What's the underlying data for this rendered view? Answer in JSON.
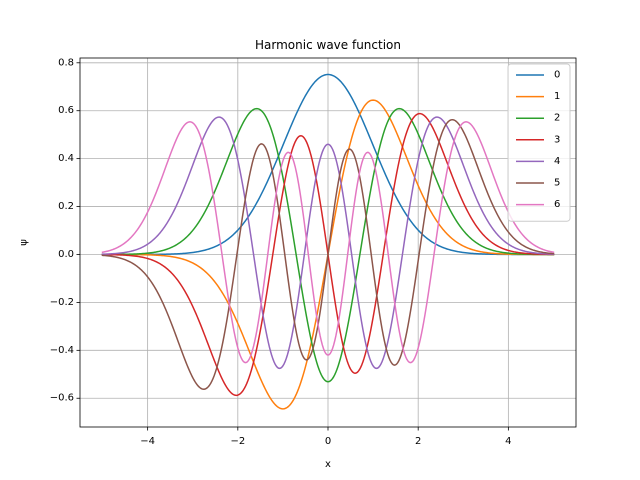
{
  "chart_data": {
    "type": "line",
    "title": "Harmonic wave function",
    "xlabel": "x",
    "ylabel": "ψ",
    "xlim": [
      -5.5,
      5.5
    ],
    "ylim": [
      -0.72,
      0.82
    ],
    "x_range": [
      -5,
      5
    ],
    "x_ticks": [
      -4,
      -2,
      0,
      2,
      4
    ],
    "x_tick_labels": [
      "−4",
      "−2",
      "0",
      "2",
      "4"
    ],
    "y_ticks": [
      -0.6,
      -0.4,
      -0.2,
      0.0,
      0.2,
      0.4,
      0.6,
      0.8
    ],
    "y_tick_labels": [
      "−0.6",
      "−0.4",
      "−0.2",
      "0.0",
      "0.2",
      "0.4",
      "0.6",
      "0.8"
    ],
    "grid": true,
    "legend_position": "upper right",
    "series": [
      {
        "name": "0",
        "n": 0,
        "color": "#1f77b4"
      },
      {
        "name": "1",
        "n": 1,
        "color": "#ff7f0e"
      },
      {
        "name": "2",
        "n": 2,
        "color": "#2ca02c"
      },
      {
        "name": "3",
        "n": 3,
        "color": "#d62728"
      },
      {
        "name": "4",
        "n": 4,
        "color": "#9467bd"
      },
      {
        "name": "5",
        "n": 5,
        "color": "#8c564b"
      },
      {
        "name": "6",
        "n": 6,
        "color": "#e377c2"
      }
    ]
  }
}
